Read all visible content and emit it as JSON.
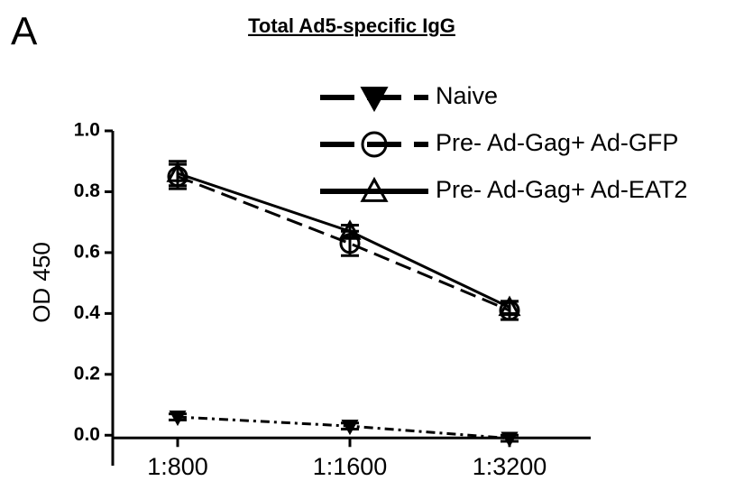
{
  "panel_label": "A",
  "chart_data": {
    "type": "line",
    "title": "Total Ad5-specific IgG",
    "ylabel": "OD 450",
    "categories": [
      "1:800",
      "1:1600",
      "1:3200"
    ],
    "series": [
      {
        "name": "Naive",
        "color": "#000000",
        "marker": "triangle-down",
        "line_style": "dashdot",
        "values": [
          0.06,
          0.03,
          -0.01
        ],
        "errors": [
          0.01,
          0.01,
          0.01
        ]
      },
      {
        "name": "Pre- Ad-Gag+ Ad-GFP",
        "color": "#000000",
        "marker": "circle",
        "line_style": "dashed",
        "values": [
          0.85,
          0.63,
          0.41
        ],
        "errors": [
          0.04,
          0.04,
          0.03
        ]
      },
      {
        "name": "Pre- Ad-Gag+ Ad-EAT2",
        "color": "#000000",
        "marker": "triangle-up",
        "line_style": "solid",
        "values": [
          0.86,
          0.67,
          0.42
        ],
        "errors": [
          0.04,
          0.02,
          0.02
        ]
      }
    ],
    "ylim": [
      -0.1,
      1.0
    ],
    "yticks": [
      {
        "value": 0,
        "label": "0.0"
      },
      0.2,
      0.4,
      0.6,
      0.8,
      {
        "value": 1,
        "label": "1.0"
      }
    ],
    "grid": false,
    "legend": "upper right"
  }
}
